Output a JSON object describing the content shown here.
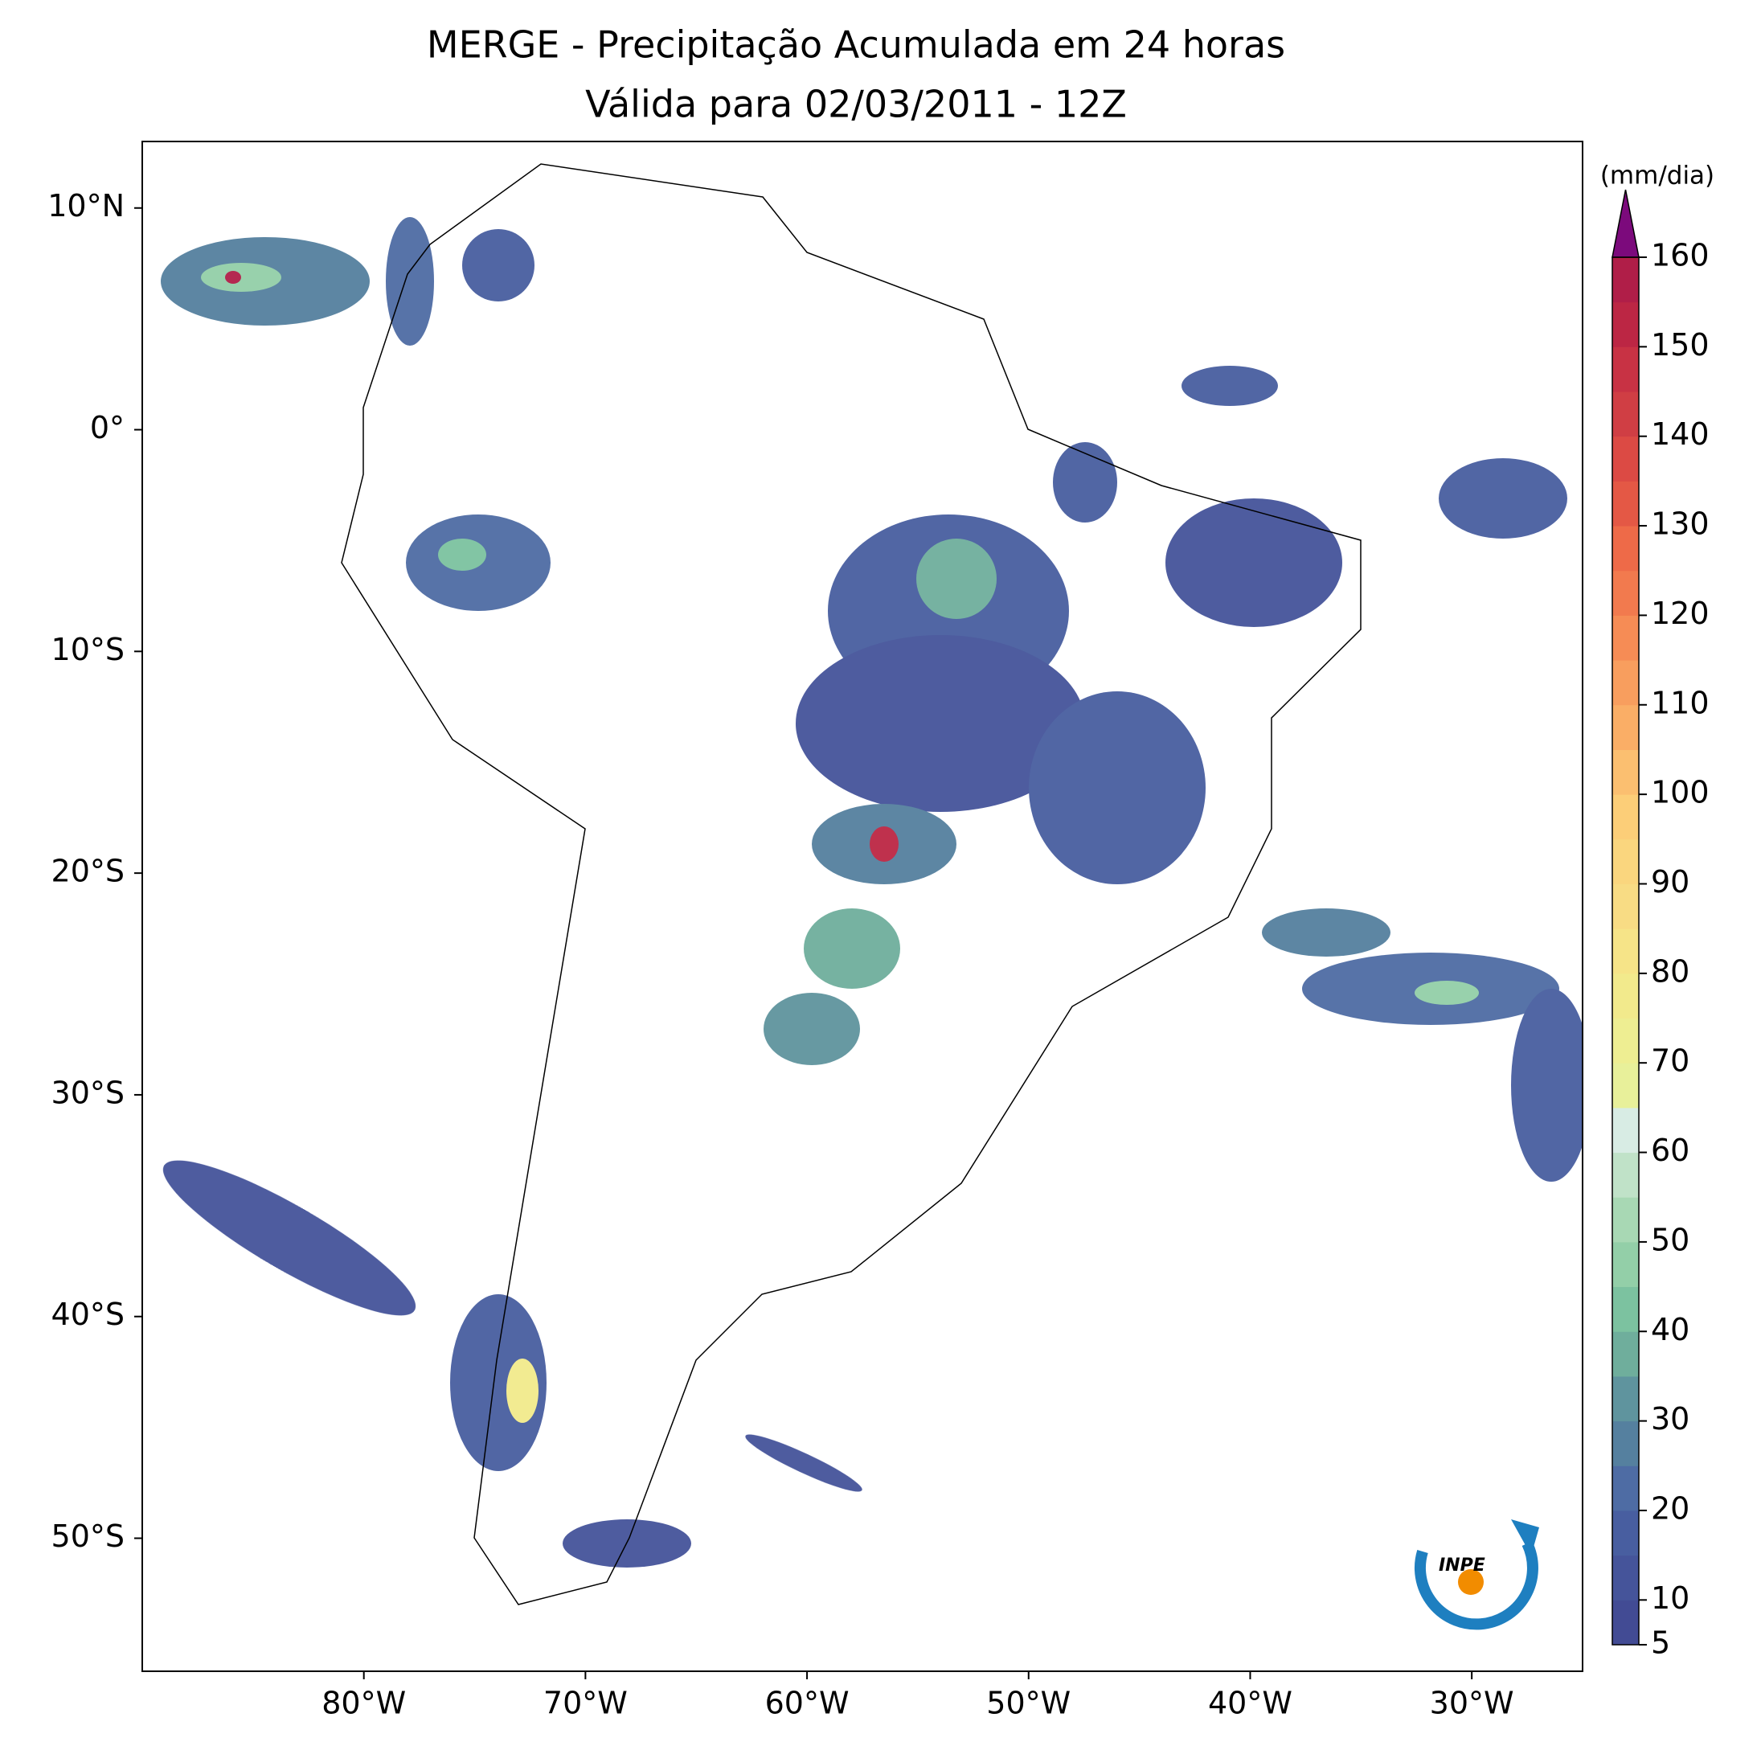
{
  "map": {
    "title": "MERGE - Precipitação Acumulada em 24 horas",
    "subtitle": "Válida para 02/03/2011 - 12Z",
    "xlim": [
      -90,
      -25
    ],
    "ylim": [
      -56,
      13
    ],
    "xticks": [
      {
        "value": -80,
        "label": "80°W"
      },
      {
        "value": -70,
        "label": "70°W"
      },
      {
        "value": -60,
        "label": "60°W"
      },
      {
        "value": -50,
        "label": "50°W"
      },
      {
        "value": -40,
        "label": "40°W"
      },
      {
        "value": -30,
        "label": "30°W"
      }
    ],
    "yticks": [
      {
        "value": 10,
        "label": "10°N"
      },
      {
        "value": 0,
        "label": "0°"
      },
      {
        "value": -10,
        "label": "10°S"
      },
      {
        "value": -20,
        "label": "20°S"
      },
      {
        "value": -30,
        "label": "30°S"
      },
      {
        "value": -40,
        "label": "40°S"
      },
      {
        "value": -50,
        "label": "50°S"
      }
    ],
    "colorbar": {
      "label": "(mm/dia)",
      "lim": [
        5,
        160
      ],
      "ticks": [
        5,
        10,
        20,
        30,
        40,
        50,
        60,
        70,
        80,
        90,
        100,
        110,
        120,
        130,
        140,
        150,
        160
      ],
      "colors": [
        "#424b94",
        "#45549a",
        "#485ea0",
        "#4e6ca4",
        "#55809f",
        "#5f949e",
        "#6fae9c",
        "#7cc2a0",
        "#93cfa8",
        "#a8d8b4",
        "#c0e2c8",
        "#d8ece4",
        "#e8f09a",
        "#eeee92",
        "#f2ea8c",
        "#f6e488",
        "#f8dc84",
        "#fad67e",
        "#fcce78",
        "#fbbf70",
        "#faae66",
        "#f89e5e",
        "#f68c55",
        "#f27a4e",
        "#ee6a48",
        "#e45845",
        "#dc4a44",
        "#d03e44",
        "#c83244",
        "#bc2644",
        "#b01e48"
      ],
      "extend_color": "#7c0a7c"
    },
    "logo_text": "INPE"
  }
}
